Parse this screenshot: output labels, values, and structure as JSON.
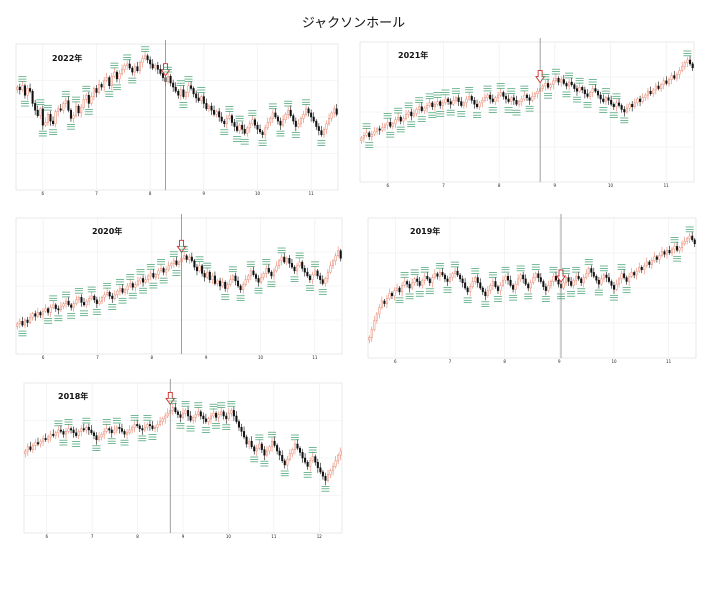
{
  "page": {
    "title": "ジャクソンホール"
  },
  "colors": {
    "up": "#e8836b",
    "down": "#111111",
    "arrow": "#d02b2b",
    "grid": "#d9d9d9",
    "vline": "#888888",
    "annotation": "#3a9b6a"
  },
  "chart_data": [
    {
      "type": "candlestick",
      "year_label": "2022年",
      "x_ticks": [
        "6",
        "7",
        "8",
        "9",
        "10",
        "11"
      ],
      "y_range": [
        0,
        100
      ],
      "event_index": 58,
      "closes": [
        72,
        70,
        73,
        66,
        71,
        69,
        60,
        55,
        51,
        56,
        44,
        46,
        52,
        47,
        45,
        54,
        56,
        55,
        60,
        62,
        55,
        49,
        51,
        58,
        53,
        57,
        63,
        66,
        60,
        65,
        71,
        68,
        74,
        72,
        77,
        79,
        73,
        80,
        83,
        78,
        82,
        85,
        88,
        89,
        86,
        83,
        87,
        84,
        90,
        93,
        95,
        92,
        89,
        86,
        88,
        85,
        82,
        79,
        76,
        80,
        75,
        72,
        69,
        66,
        70,
        65,
        68,
        73,
        71,
        67,
        64,
        62,
        65,
        60,
        56,
        58,
        55,
        52,
        54,
        50,
        47,
        45,
        49,
        51,
        46,
        43,
        40,
        44,
        41,
        38,
        42,
        45,
        48,
        44,
        41,
        39,
        37,
        42,
        46,
        49,
        53,
        50,
        47,
        44,
        48,
        52,
        55,
        51,
        47,
        43,
        45,
        49,
        52,
        56,
        53,
        50,
        47,
        43,
        40,
        37,
        41,
        45,
        49,
        53,
        56,
        52
      ]
    },
    {
      "type": "candlestick",
      "year_label": "2021年",
      "x_ticks": [
        "6",
        "7",
        "8",
        "9",
        "10",
        "11"
      ],
      "y_range": [
        0,
        100
      ],
      "event_index": 68,
      "closes": [
        30,
        32,
        34,
        31,
        33,
        35,
        37,
        36,
        38,
        40,
        42,
        39,
        41,
        44,
        46,
        43,
        45,
        48,
        50,
        47,
        49,
        52,
        54,
        51,
        53,
        55,
        57,
        54,
        56,
        58,
        55,
        57,
        60,
        58,
        56,
        59,
        61,
        58,
        55,
        57,
        60,
        62,
        59,
        56,
        54,
        57,
        59,
        61,
        63,
        60,
        58,
        61,
        63,
        65,
        62,
        60,
        58,
        61,
        59,
        56,
        58,
        60,
        63,
        61,
        59,
        62,
        64,
        66,
        68,
        70,
        72,
        69,
        71,
        74,
        76,
        73,
        75,
        72,
        70,
        73,
        71,
        68,
        66,
        69,
        67,
        64,
        62,
        65,
        68,
        66,
        63,
        60,
        58,
        61,
        59,
        56,
        54,
        57,
        55,
        52,
        50,
        53,
        56,
        54,
        57,
        60,
        58,
        61,
        63,
        66,
        64,
        67,
        70,
        68,
        71,
        74,
        72,
        75,
        78,
        76,
        79,
        82,
        85,
        88,
        90,
        87,
        84
      ]
    },
    {
      "type": "candlestick",
      "year_label": "2020年",
      "x_ticks": [
        "6",
        "7",
        "8",
        "9",
        "10",
        "11"
      ],
      "y_range": [
        0,
        100
      ],
      "event_index": 64,
      "closes": [
        20,
        22,
        19,
        23,
        21,
        25,
        28,
        26,
        29,
        27,
        30,
        32,
        29,
        33,
        35,
        32,
        31,
        34,
        36,
        38,
        35,
        33,
        36,
        39,
        41,
        37,
        35,
        38,
        40,
        42,
        39,
        36,
        38,
        41,
        43,
        45,
        42,
        40,
        43,
        46,
        48,
        45,
        47,
        50,
        52,
        49,
        51,
        54,
        56,
        53,
        55,
        58,
        60,
        57,
        59,
        62,
        64,
        61,
        63,
        66,
        68,
        70,
        67,
        69,
        72,
        74,
        71,
        73,
        70,
        65,
        62,
        66,
        60,
        57,
        61,
        55,
        58,
        52,
        54,
        50,
        53,
        48,
        51,
        55,
        58,
        54,
        50,
        47,
        51,
        55,
        58,
        62,
        59,
        56,
        53,
        57,
        60,
        64,
        61,
        58,
        62,
        66,
        70,
        73,
        69,
        72,
        68,
        65,
        62,
        66,
        69,
        64,
        61,
        58,
        55,
        59,
        62,
        58,
        55,
        52,
        56,
        61,
        66,
        70,
        74,
        78,
        72
      ]
    },
    {
      "type": "candlestick",
      "year_label": "2019年",
      "x_ticks": [
        "6",
        "7",
        "8",
        "9",
        "10",
        "11"
      ],
      "y_range": [
        0,
        100
      ],
      "event_index": 76,
      "closes": [
        12,
        18,
        25,
        30,
        35,
        40,
        38,
        42,
        46,
        44,
        48,
        50,
        47,
        52,
        55,
        53,
        50,
        54,
        57,
        55,
        52,
        56,
        59,
        57,
        54,
        58,
        61,
        59,
        62,
        60,
        57,
        55,
        58,
        61,
        63,
        60,
        57,
        54,
        50,
        47,
        51,
        55,
        58,
        54,
        50,
        47,
        44,
        48,
        52,
        55,
        51,
        48,
        52,
        56,
        59,
        56,
        52,
        49,
        53,
        57,
        60,
        57,
        53,
        50,
        54,
        58,
        61,
        58,
        55,
        51,
        48,
        52,
        55,
        59,
        56,
        53,
        50,
        54,
        58,
        55,
        52,
        56,
        59,
        57,
        54,
        58,
        61,
        65,
        62,
        59,
        56,
        53,
        57,
        60,
        58,
        55,
        52,
        49,
        53,
        57,
        61,
        58,
        55,
        59,
        62,
        60,
        63,
        66,
        64,
        67,
        70,
        68,
        71,
        74,
        72,
        75,
        78,
        76,
        79,
        77,
        80,
        82,
        79,
        81,
        84,
        86,
        88,
        90,
        87,
        84
      ]
    },
    {
      "type": "candlestick",
      "year_label": "2018年",
      "x_ticks": [
        "6",
        "7",
        "8",
        "9",
        "10",
        "11",
        "12"
      ],
      "y_range": [
        0,
        100
      ],
      "event_index": 57,
      "closes": [
        55,
        58,
        56,
        59,
        61,
        60,
        62,
        64,
        63,
        65,
        67,
        66,
        68,
        70,
        69,
        67,
        69,
        71,
        70,
        68,
        66,
        69,
        71,
        70,
        72,
        70,
        68,
        66,
        63,
        65,
        67,
        69,
        71,
        70,
        68,
        70,
        72,
        71,
        69,
        67,
        68,
        70,
        72,
        74,
        73,
        71,
        70,
        72,
        74,
        73,
        71,
        72,
        74,
        76,
        78,
        80,
        82,
        84,
        86,
        83,
        81,
        79,
        82,
        84,
        80,
        77,
        79,
        81,
        83,
        80,
        78,
        76,
        78,
        80,
        82,
        79,
        81,
        83,
        80,
        78,
        82,
        84,
        80,
        76,
        72,
        69,
        65,
        60,
        62,
        58,
        55,
        57,
        60,
        56,
        52,
        55,
        58,
        62,
        59,
        55,
        52,
        48,
        45,
        49,
        53,
        56,
        60,
        57,
        54,
        50,
        47,
        44,
        48,
        51,
        47,
        43,
        40,
        37,
        34,
        38,
        41,
        44,
        48,
        52,
        55
      ]
    }
  ]
}
